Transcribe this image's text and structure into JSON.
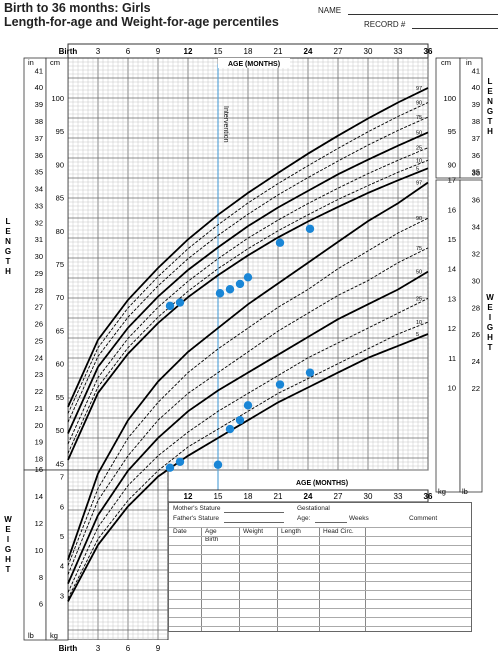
{
  "header": {
    "title": "Birth to 36 months: Girls",
    "subtitle": "Length-for-age and Weight-for-age percentiles",
    "name_label": "NAME",
    "record_label": "RECORD #"
  },
  "chart_data": [
    {
      "type": "line",
      "title": "Length-for-age percentiles",
      "xlabel": "AGE (MONTHS)",
      "ylabel": "LENGTH",
      "x_ticks": [
        "Birth",
        "3",
        "6",
        "9",
        "12",
        "15",
        "18",
        "21",
        "24",
        "27",
        "30",
        "33",
        "36"
      ],
      "xlim": [
        0,
        36
      ],
      "y_units": [
        "in",
        "cm"
      ],
      "ylim_cm": [
        44,
        106
      ],
      "percentile_labels": [
        "97",
        "90",
        "75",
        "50",
        "25",
        "10",
        "5"
      ],
      "series": [
        {
          "name": "97",
          "x": [
            0,
            3,
            6,
            9,
            12,
            15,
            18,
            21,
            24,
            27,
            30,
            33,
            36
          ],
          "values": [
            53.5,
            63.6,
            69.6,
            74.4,
            78.7,
            82.4,
            85.7,
            88.7,
            91.6,
            94.3,
            96.9,
            99.3,
            101.5
          ]
        },
        {
          "name": "90",
          "x": [
            0,
            3,
            6,
            9,
            12,
            15,
            18,
            21,
            24,
            27,
            30,
            33,
            36
          ],
          "values": [
            52.5,
            62.4,
            68.4,
            73.1,
            77.3,
            80.9,
            84.2,
            87.1,
            89.8,
            92.4,
            94.9,
            97.2,
            99.3
          ]
        },
        {
          "name": "75",
          "x": [
            0,
            3,
            6,
            9,
            12,
            15,
            18,
            21,
            24,
            27,
            30,
            33,
            36
          ],
          "values": [
            51.2,
            61.1,
            67.0,
            71.7,
            75.8,
            79.3,
            82.5,
            85.4,
            88.0,
            90.5,
            92.9,
            95.1,
            97.1
          ]
        },
        {
          "name": "50",
          "x": [
            0,
            3,
            6,
            9,
            12,
            15,
            18,
            21,
            24,
            27,
            30,
            33,
            36
          ],
          "values": [
            49.5,
            59.5,
            65.4,
            70.1,
            74.1,
            77.5,
            80.7,
            83.5,
            86.0,
            88.5,
            90.7,
            92.8,
            94.8
          ]
        },
        {
          "name": "25",
          "x": [
            0,
            3,
            6,
            9,
            12,
            15,
            18,
            21,
            24,
            27,
            30,
            33,
            36
          ],
          "values": [
            47.9,
            57.9,
            63.8,
            68.5,
            72.4,
            75.8,
            78.9,
            81.6,
            84.1,
            86.4,
            88.6,
            90.6,
            92.5
          ]
        },
        {
          "name": "10",
          "x": [
            0,
            3,
            6,
            9,
            12,
            15,
            18,
            21,
            24,
            27,
            30,
            33,
            36
          ],
          "values": [
            46.5,
            56.5,
            62.4,
            67.0,
            70.9,
            74.3,
            77.3,
            80.0,
            82.4,
            84.7,
            86.8,
            88.8,
            90.6
          ]
        },
        {
          "name": "5",
          "x": [
            0,
            3,
            6,
            9,
            12,
            15,
            18,
            21,
            24,
            27,
            30,
            33,
            36
          ],
          "values": [
            45.5,
            55.6,
            61.5,
            66.1,
            70.0,
            73.3,
            76.3,
            79.0,
            81.4,
            83.6,
            85.7,
            87.6,
            89.4
          ]
        }
      ],
      "patient_points": {
        "x": [
          10.2,
          11.2,
          15.2,
          16.2,
          17.2,
          18.0,
          21.2,
          24.2
        ],
        "values": [
          68.7,
          69.2,
          70.6,
          71.2,
          72.0,
          73.0,
          78.2,
          80.3
        ]
      },
      "annotation": "Intervention",
      "intervention_x": 15
    },
    {
      "type": "line",
      "title": "Weight-for-age percentiles",
      "xlabel": "AGE (MONTHS)",
      "ylabel": "WEIGHT",
      "x_ticks": [
        "Birth",
        "3",
        "6",
        "9",
        "12",
        "15",
        "18",
        "21",
        "24",
        "27",
        "30",
        "33",
        "36"
      ],
      "xlim": [
        0,
        36
      ],
      "y_units": [
        "kg",
        "lb"
      ],
      "ylim_kg": [
        1.5,
        18.5
      ],
      "percentile_labels": [
        "97",
        "90",
        "75",
        "50",
        "25",
        "10",
        "5"
      ],
      "series": [
        {
          "name": "97",
          "x": [
            0,
            3,
            6,
            9,
            12,
            15,
            18,
            21,
            24,
            27,
            30,
            33,
            36
          ],
          "values": [
            4.2,
            7.1,
            8.9,
            10.2,
            11.2,
            12.0,
            12.8,
            13.5,
            14.2,
            14.9,
            15.6,
            16.2,
            16.9
          ]
        },
        {
          "name": "90",
          "x": [
            0,
            3,
            6,
            9,
            12,
            15,
            18,
            21,
            24,
            27,
            30,
            33,
            36
          ],
          "values": [
            4.0,
            6.6,
            8.3,
            9.5,
            10.5,
            11.3,
            12.0,
            12.7,
            13.3,
            14.0,
            14.6,
            15.2,
            15.7
          ]
        },
        {
          "name": "75",
          "x": [
            0,
            3,
            6,
            9,
            12,
            15,
            18,
            21,
            24,
            27,
            30,
            33,
            36
          ],
          "values": [
            3.7,
            6.2,
            7.7,
            8.9,
            9.8,
            10.5,
            11.2,
            11.9,
            12.5,
            13.1,
            13.6,
            14.2,
            14.7
          ]
        },
        {
          "name": "50",
          "x": [
            0,
            3,
            6,
            9,
            12,
            15,
            18,
            21,
            24,
            27,
            30,
            33,
            36
          ],
          "values": [
            3.4,
            5.7,
            7.2,
            8.3,
            9.2,
            9.9,
            10.5,
            11.1,
            11.7,
            12.3,
            12.8,
            13.3,
            13.9
          ]
        },
        {
          "name": "25",
          "x": [
            0,
            3,
            6,
            9,
            12,
            15,
            18,
            21,
            24,
            27,
            30,
            33,
            36
          ],
          "values": [
            3.1,
            5.3,
            6.7,
            7.7,
            8.5,
            9.2,
            9.8,
            10.4,
            11.0,
            11.5,
            12.0,
            12.5,
            13.0
          ]
        },
        {
          "name": "10",
          "x": [
            0,
            3,
            6,
            9,
            12,
            15,
            18,
            21,
            24,
            27,
            30,
            33,
            36
          ],
          "values": [
            2.9,
            4.9,
            6.2,
            7.2,
            8.0,
            8.6,
            9.2,
            9.8,
            10.3,
            10.8,
            11.3,
            11.8,
            12.2
          ]
        },
        {
          "name": "5",
          "x": [
            0,
            3,
            6,
            9,
            12,
            15,
            18,
            21,
            24,
            27,
            30,
            33,
            36
          ],
          "values": [
            2.8,
            4.7,
            6.0,
            7.0,
            7.7,
            8.3,
            8.9,
            9.5,
            10.0,
            10.5,
            11.0,
            11.4,
            11.8
          ]
        }
      ],
      "patient_points": {
        "x": [
          10.2,
          11.2,
          15.0,
          16.2,
          17.2,
          18.0,
          21.2,
          24.2
        ],
        "values": [
          7.3,
          7.5,
          7.4,
          8.6,
          8.9,
          9.4,
          10.1,
          10.5
        ]
      }
    }
  ],
  "axis_titles": {
    "age": "AGE (MONTHS)",
    "length": "LENGTH",
    "weight": "WEIGHT"
  },
  "units": {
    "in": "in",
    "cm": "cm",
    "kg": "kg",
    "lb": "lb"
  },
  "form": {
    "mothers_stature": "Mother's Stature",
    "fathers_stature": "Father's Stature",
    "gestational": "Gestational",
    "age": "Age:",
    "weeks": "Weeks",
    "comment": "Comment",
    "col_date": "Date",
    "col_age": "Age",
    "col_age_sub": "Birth",
    "col_weight": "Weight",
    "col_length": "Length",
    "col_head": "Head Circ."
  },
  "colors": {
    "curve": "#000000",
    "patient": "#1a86d6",
    "intervention_line": "#5aa5d8",
    "grid": "#b9b9b9"
  }
}
